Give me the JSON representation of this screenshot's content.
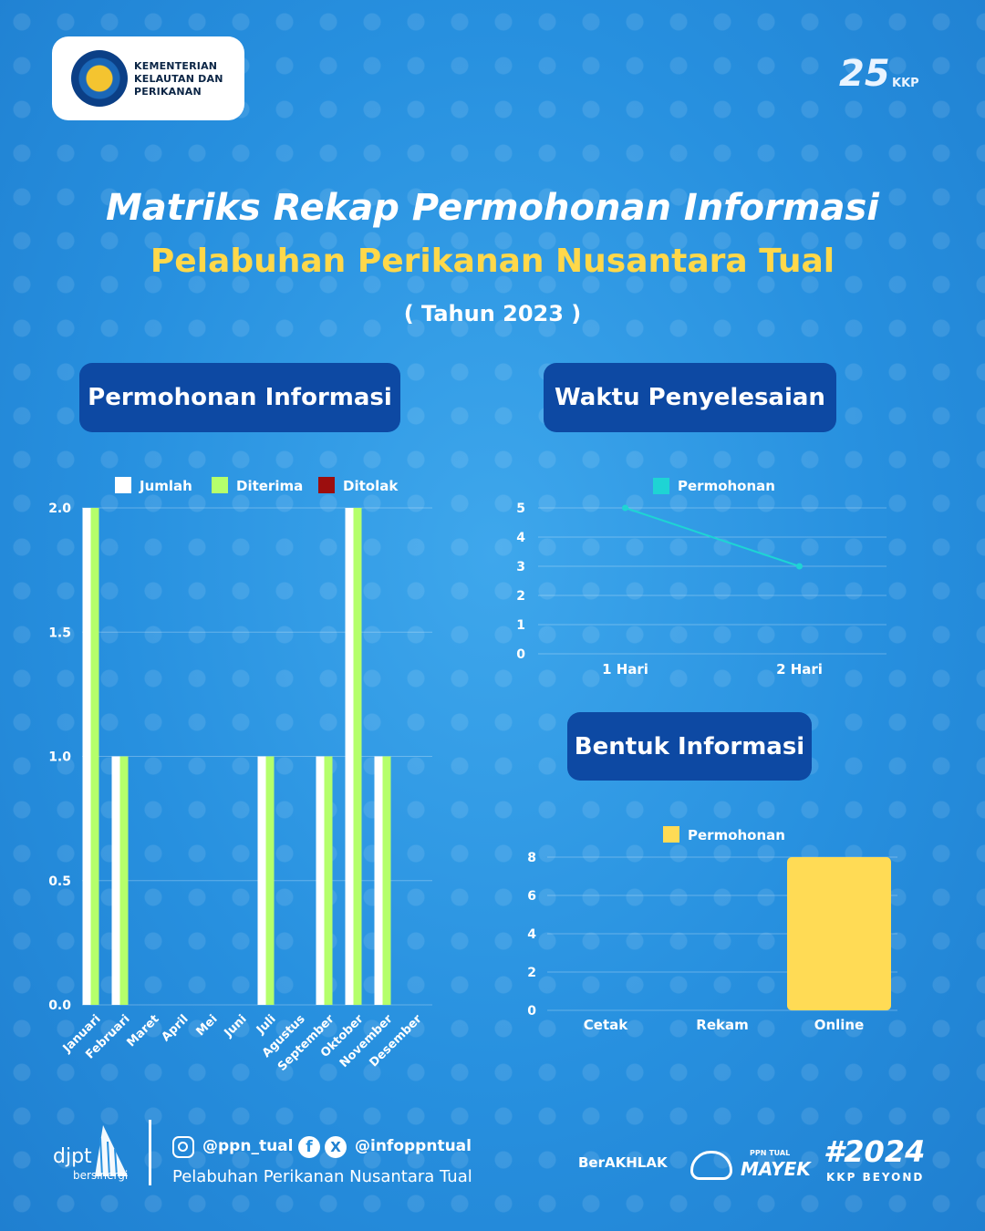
{
  "header": {
    "ministry_lines": [
      "KEMENTERIAN",
      "KELAUTAN DAN",
      "PERIKANAN"
    ],
    "anniversary": "25",
    "anniversary_brand": "KKP"
  },
  "title": {
    "line1": "Matriks Rekap Permohonan Informasi",
    "line2": "Pelabuhan Perikanan Nusantara Tual",
    "line3": "( Tahun 2023 )"
  },
  "sections": {
    "left": "Permohonan Informasi",
    "right_top": "Waktu Penyelesaian",
    "right_bottom": "Bentuk Informasi"
  },
  "colors": {
    "jumlah": "#ffffff",
    "diterima": "#b5ff6b",
    "ditolak": "#9c0e0e",
    "line": "#1ed4d4",
    "bar_yellow": "#ffdb55",
    "pill": "#0d49a3",
    "title_yellow": "#ffd84a"
  },
  "chart_data": [
    {
      "type": "bar",
      "categories": [
        "Januari",
        "Februari",
        "Maret",
        "April",
        "Mei",
        "Juni",
        "Juli",
        "Agustus",
        "September",
        "Oktober",
        "November",
        "Desember"
      ],
      "series": [
        {
          "name": "Jumlah",
          "values": [
            2,
            1,
            0,
            0,
            0,
            0,
            1,
            0,
            1,
            2,
            1,
            0
          ]
        },
        {
          "name": "Diterima",
          "values": [
            2,
            1,
            0,
            0,
            0,
            0,
            1,
            0,
            1,
            2,
            1,
            0
          ]
        },
        {
          "name": "Ditolak",
          "values": [
            0,
            0,
            0,
            0,
            0,
            0,
            0,
            0,
            0,
            0,
            0,
            0
          ]
        }
      ],
      "yticks": [
        "0.0",
        "0.5",
        "1.0",
        "1.5",
        "2.0"
      ],
      "ylim": [
        0,
        2
      ],
      "legend": "top",
      "grid": true
    },
    {
      "type": "line",
      "categories": [
        "1 Hari",
        "2 Hari"
      ],
      "series": [
        {
          "name": "Permohonan",
          "values": [
            5,
            3
          ]
        }
      ],
      "yticks": [
        "0",
        "1",
        "2",
        "3",
        "4",
        "5"
      ],
      "ylim": [
        0,
        5
      ],
      "legend": "top",
      "grid": true
    },
    {
      "type": "bar",
      "categories": [
        "Cetak",
        "Rekam",
        "Online"
      ],
      "series": [
        {
          "name": "Permohonan",
          "values": [
            0,
            0,
            8
          ]
        }
      ],
      "yticks": [
        "0",
        "2",
        "4",
        "6",
        "8"
      ],
      "ylim": [
        0,
        8
      ],
      "legend": "top",
      "grid": true
    }
  ],
  "footer": {
    "djpt": "djpt",
    "bersinergi": "bersinergi",
    "instagram": "@ppn_tual",
    "social": "@infoppntual",
    "org": "Pelabuhan Perikanan Nusantara Tual",
    "berakhlak": "BerAKHLAK",
    "ppn_tual": "PPN TUAL",
    "mayek": "MAYEK",
    "hashtag": "#2024",
    "kkp_beyond": "KKP BEYOND"
  }
}
